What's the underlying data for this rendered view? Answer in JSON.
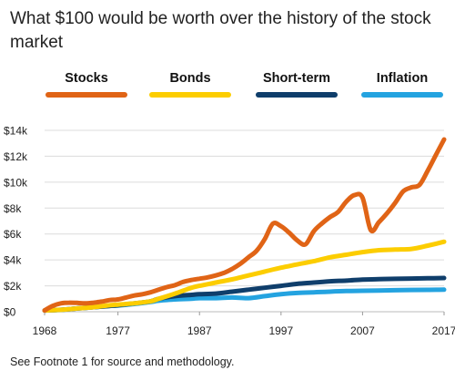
{
  "title": "What $100 would be worth over the history of the stock market",
  "footnote": "See Footnote 1 for source and methodology.",
  "chart_data": {
    "type": "line",
    "title": "What $100 would be worth over the history of the stock market",
    "xlabel": "",
    "ylabel": "",
    "xlim": [
      1968,
      2017
    ],
    "ylim": [
      0,
      14000
    ],
    "x_ticks": [
      "1968",
      "1977",
      "1987",
      "1997",
      "2007",
      "2017"
    ],
    "y_ticks": [
      "$0",
      "$2k",
      "$4k",
      "$6k",
      "$8k",
      "$10k",
      "$12k",
      "$14k"
    ],
    "y_tick_values": [
      0,
      2000,
      4000,
      6000,
      8000,
      10000,
      12000,
      14000
    ],
    "x_tick_values": [
      1968,
      1977,
      1987,
      1997,
      2007,
      2017
    ],
    "grid": "horizontal",
    "legend_position": "top",
    "series": [
      {
        "name": "Stocks",
        "color": "#e06416",
        "x": [
          1968,
          1969,
          1970,
          1971,
          1972,
          1973,
          1974,
          1975,
          1976,
          1977,
          1978,
          1979,
          1980,
          1981,
          1982,
          1983,
          1984,
          1985,
          1986,
          1987,
          1988,
          1989,
          1990,
          1991,
          1992,
          1993,
          1994,
          1995,
          1996,
          1997,
          1998,
          1999,
          2000,
          2001,
          2002,
          2003,
          2004,
          2005,
          2006,
          2007,
          2008,
          2009,
          2010,
          2011,
          2012,
          2013,
          2014,
          2015,
          2016,
          2017
        ],
        "values": [
          100,
          450,
          650,
          700,
          680,
          650,
          700,
          780,
          900,
          950,
          1100,
          1250,
          1350,
          1500,
          1700,
          1900,
          2050,
          2300,
          2450,
          2550,
          2650,
          2800,
          3000,
          3300,
          3700,
          4200,
          4700,
          5600,
          6800,
          6600,
          6100,
          5500,
          5200,
          6200,
          6800,
          7300,
          7700,
          8500,
          9000,
          8800,
          6300,
          6900,
          7600,
          8400,
          9300,
          9600,
          9800,
          10900,
          12100,
          13300
        ]
      },
      {
        "name": "Bonds",
        "color": "#fccd00",
        "x": [
          1968,
          1970,
          1972,
          1974,
          1976,
          1977,
          1979,
          1981,
          1982,
          1984,
          1986,
          1987,
          1989,
          1991,
          1993,
          1995,
          1997,
          1999,
          2001,
          2003,
          2005,
          2007,
          2009,
          2011,
          2013,
          2015,
          2017
        ],
        "values": [
          100,
          150,
          250,
          350,
          500,
          550,
          650,
          800,
          1000,
          1400,
          1850,
          2000,
          2250,
          2500,
          2800,
          3100,
          3400,
          3650,
          3900,
          4200,
          4400,
          4600,
          4750,
          4800,
          4850,
          5100,
          5400
        ]
      },
      {
        "name": "Short-term",
        "color": "#0f3e6b",
        "x": [
          1968,
          1970,
          1972,
          1974,
          1976,
          1977,
          1979,
          1981,
          1982,
          1984,
          1986,
          1987,
          1989,
          1991,
          1993,
          1995,
          1997,
          1999,
          2001,
          2003,
          2005,
          2007,
          2009,
          2011,
          2013,
          2015,
          2017
        ],
        "values": [
          100,
          150,
          250,
          350,
          450,
          500,
          650,
          800,
          1000,
          1200,
          1300,
          1350,
          1400,
          1550,
          1700,
          1850,
          2000,
          2150,
          2250,
          2350,
          2400,
          2480,
          2520,
          2540,
          2560,
          2580,
          2600
        ]
      },
      {
        "name": "Inflation",
        "color": "#24a3e0",
        "x": [
          1968,
          1970,
          1972,
          1974,
          1976,
          1977,
          1979,
          1981,
          1982,
          1984,
          1986,
          1987,
          1989,
          1991,
          1993,
          1995,
          1997,
          1999,
          2001,
          2003,
          2005,
          2007,
          2009,
          2011,
          2013,
          2015,
          2017
        ],
        "values": [
          100,
          140,
          250,
          350,
          450,
          480,
          600,
          750,
          850,
          950,
          1000,
          1050,
          1050,
          1100,
          1050,
          1200,
          1350,
          1450,
          1500,
          1550,
          1600,
          1620,
          1640,
          1660,
          1680,
          1690,
          1700
        ]
      }
    ]
  }
}
